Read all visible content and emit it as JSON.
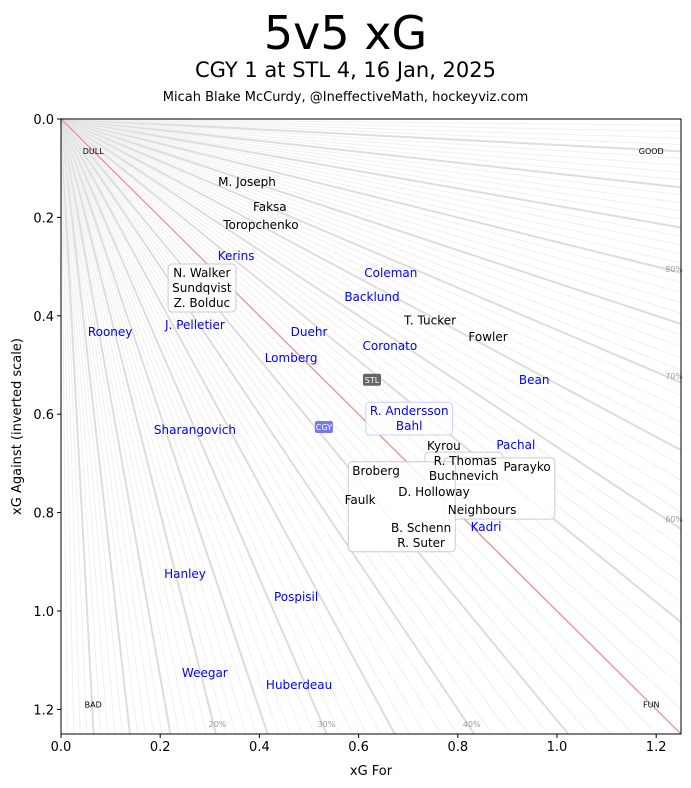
{
  "chart_data": {
    "type": "scatter",
    "title": "5v5 xG",
    "subtitle": "CGY 1 at STL 4, 16 Jan, 2025",
    "credit": "Micah Blake McCurdy, @IneffectiveMath, hockeyviz.com",
    "xlabel": "xG For",
    "ylabel": "xG Against (inverted scale)",
    "xlim": [
      0,
      1.25
    ],
    "ylim": [
      1.25,
      0
    ],
    "y_inverted": true,
    "xticks": [
      "0.0",
      "0.2",
      "0.4",
      "0.6",
      "0.8",
      "1.0",
      "1.2"
    ],
    "yticks": [
      "0.0",
      "0.2",
      "0.4",
      "0.6",
      "0.8",
      "1.0",
      "1.2"
    ],
    "corner_labels": {
      "top_left": "DULL",
      "top_right": "GOOD",
      "bottom_left": "BAD",
      "bottom_right": "FUN"
    },
    "percent_labels_bottom": [
      "20%",
      "30%",
      "40%"
    ],
    "percent_labels_right": [
      "60%",
      "70%",
      "80%"
    ],
    "colors": {
      "STL": "#000000",
      "CGY": "#0000ff",
      "diagonal": "#e0a0a0",
      "team_STL_box": "#666666",
      "team_CGY_box": "#7777ee"
    },
    "teams": [
      {
        "name": "STL",
        "x": 0.627,
        "y": 0.53
      },
      {
        "name": "CGY",
        "x": 0.53,
        "y": 0.626
      }
    ],
    "series": [
      {
        "name": "STL",
        "points": [
          {
            "label": "M. Joseph",
            "x": 0.375,
            "y": 0.128
          },
          {
            "label": "Faksa",
            "x": 0.421,
            "y": 0.15
          },
          {
            "label": "Toropchenko",
            "x": 0.403,
            "y": 0.187
          },
          {
            "label": "N. Walker",
            "x": 0.284,
            "y": 0.313,
            "group": "a"
          },
          {
            "label": "Sundqvist",
            "x": 0.284,
            "y": 0.343,
            "group": "a"
          },
          {
            "label": "Z. Bolduc",
            "x": 0.284,
            "y": 0.374,
            "group": "a"
          },
          {
            "label": "T. Tucker",
            "x": 0.744,
            "y": 0.41
          },
          {
            "label": "Fowler",
            "x": 0.861,
            "y": 0.443
          },
          {
            "label": "Kyrou",
            "x": 0.772,
            "y": 0.665
          },
          {
            "label": "R. Thomas",
            "x": 0.815,
            "y": 0.667,
            "group": "b"
          },
          {
            "label": "Buchnevich",
            "x": 0.812,
            "y": 0.697,
            "group": "b"
          },
          {
            "label": "D. Holloway",
            "x": 0.752,
            "y": 0.701
          },
          {
            "label": "Parayko",
            "x": 0.849,
            "y": 0.707,
            "group": "c"
          },
          {
            "label": "Neighbours",
            "x": 0.849,
            "y": 0.738,
            "group": "c"
          },
          {
            "label": "Broberg",
            "x": 0.726,
            "y": 0.715,
            "group": "d"
          },
          {
            "label": "B. Schenn",
            "x": 0.726,
            "y": 0.746,
            "group": "d"
          },
          {
            "label": "R. Suter",
            "x": 0.726,
            "y": 0.776,
            "group": "d"
          },
          {
            "label": "Faulk",
            "x": 0.603,
            "y": 0.774
          }
        ]
      },
      {
        "name": "CGY",
        "points": [
          {
            "label": "Kerins",
            "x": 0.353,
            "y": 0.278
          },
          {
            "label": "Backlund",
            "x": 0.627,
            "y": 0.362
          },
          {
            "label": "Coleman",
            "x": 0.665,
            "y": 0.37
          },
          {
            "label": "J. Pelletier",
            "x": 0.27,
            "y": 0.419
          },
          {
            "label": "Rooney",
            "x": 0.099,
            "y": 0.433
          },
          {
            "label": "Duehr",
            "x": 0.5,
            "y": 0.433
          },
          {
            "label": "Coronato",
            "x": 0.663,
            "y": 0.433
          },
          {
            "label": "Lomberg",
            "x": 0.464,
            "y": 0.457
          },
          {
            "label": "Bean",
            "x": 0.954,
            "y": 0.53
          },
          {
            "label": "R. Andersson",
            "x": 0.702,
            "y": 0.594,
            "group": "e"
          },
          {
            "label": "Bahl",
            "x": 0.702,
            "y": 0.624,
            "group": "e"
          },
          {
            "label": "Sharangovich",
            "x": 0.27,
            "y": 0.632
          },
          {
            "label": "Pachal",
            "x": 0.917,
            "y": 0.72
          },
          {
            "label": "Kadri",
            "x": 0.857,
            "y": 0.829
          },
          {
            "label": "Hanley",
            "x": 0.25,
            "y": 0.925
          },
          {
            "label": "Pospisil",
            "x": 0.474,
            "y": 0.972
          },
          {
            "label": "Weegar",
            "x": 0.29,
            "y": 1.126
          },
          {
            "label": "Huberdeau",
            "x": 0.48,
            "y": 1.15
          }
        ]
      }
    ]
  }
}
